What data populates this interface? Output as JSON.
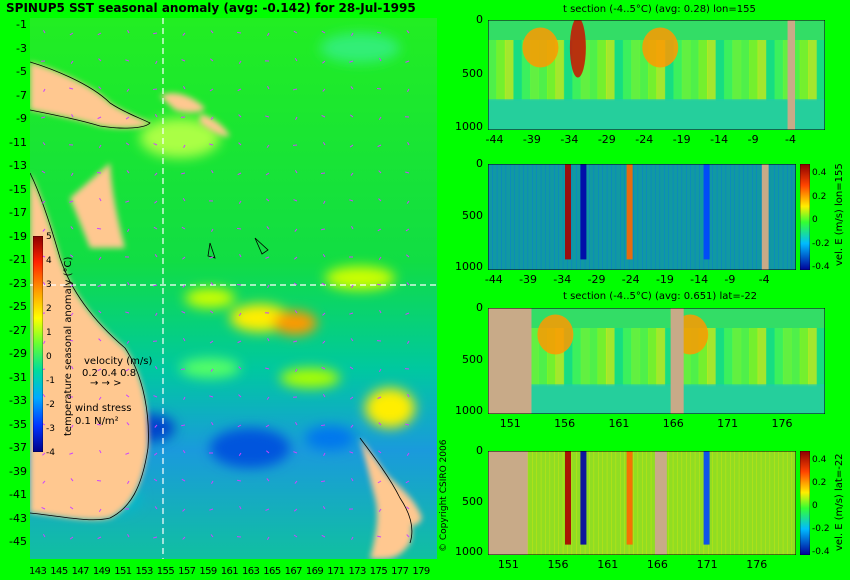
{
  "main_map": {
    "title": "SPINUP5 SST seasonal anomaly (avg: -0.142) for 28-Jul-1995",
    "y_ticks": [
      "-1",
      "-3",
      "-5",
      "-7",
      "-9",
      "-11",
      "-13",
      "-15",
      "-17",
      "-19",
      "-21",
      "-23",
      "-25",
      "-27",
      "-29",
      "-31",
      "-33",
      "-35",
      "-37",
      "-39",
      "-41",
      "-43",
      "-45"
    ],
    "x_ticks": [
      "143",
      "145",
      "147",
      "149",
      "151",
      "153",
      "155",
      "157",
      "159",
      "161",
      "163",
      "165",
      "167",
      "169",
      "171",
      "173",
      "175",
      "177",
      "179"
    ],
    "colorbar_ticks": [
      "5",
      "4",
      "3",
      "2",
      "1",
      "0",
      "-1",
      "-2",
      "-3",
      "-4"
    ],
    "colorbar_label": "temperature seasonal anomaly (°C)",
    "velocity_label": "velocity (m/s)",
    "velocity_scale": "0.2 0.4 0.8",
    "wind_label": "wind stress",
    "wind_scale": "0.1 N/m²",
    "copyright": "© Copyright CSIRO 2006"
  },
  "chart_data": [
    {
      "type": "heatmap",
      "title": "SPINUP5 SST seasonal anomaly (avg: -0.142) for 28-Jul-1995",
      "x_range": [
        143,
        180
      ],
      "y_range": [
        -45,
        0
      ],
      "colorbar_range": [
        -4,
        5
      ],
      "colorbar_label": "temperature seasonal anomaly (°C)",
      "crosshair": {
        "lon": 155,
        "lat": -22
      },
      "colors": {
        "land": "#ffc890",
        "ocean_base": "#00ff00",
        "crosshair": "#ffffff"
      }
    },
    {
      "type": "heatmap",
      "title": "t section (-4..5°C) (avg: 0.28) lon=155",
      "x_ticks": [
        "-44",
        "-39",
        "-34",
        "-29",
        "-24",
        "-19",
        "-14",
        "-9",
        "-4"
      ],
      "y_ticks": [
        "0",
        "500",
        "1000"
      ],
      "x_range": [
        -45,
        0
      ],
      "y_range": [
        0,
        1000
      ],
      "hotspots": [
        {
          "x": -33,
          "depth": 250,
          "level": "max"
        },
        {
          "x": -22,
          "depth": 250,
          "level": "high"
        },
        {
          "x": -38,
          "depth": 250,
          "level": "high"
        }
      ]
    },
    {
      "type": "heatmap",
      "title": "",
      "x_ticks": [
        "-44",
        "-39",
        "-34",
        "-29",
        "-24",
        "-19",
        "-14",
        "-9",
        "-4"
      ],
      "y_ticks": [
        "0",
        "500",
        "1000"
      ],
      "x_range": [
        -45,
        0
      ],
      "y_range": [
        0,
        1000
      ],
      "colorbar_ticks": [
        "0.4",
        "0.2",
        "0",
        "-0.2",
        "-0.4"
      ],
      "colorbar_label": "vel. E (m/s) lon=155"
    },
    {
      "type": "heatmap",
      "title": "t section (-4..5°C) (avg: 0.651) lat=-22",
      "x_ticks": [
        "151",
        "156",
        "161",
        "166",
        "171",
        "176"
      ],
      "y_ticks": [
        "0",
        "500",
        "1000"
      ],
      "x_range": [
        149,
        180
      ],
      "y_range": [
        0,
        1000
      ]
    },
    {
      "type": "heatmap",
      "title": "",
      "x_ticks": [
        "151",
        "156",
        "161",
        "166",
        "171",
        "176"
      ],
      "y_ticks": [
        "0",
        "500",
        "1000"
      ],
      "x_range": [
        149,
        180
      ],
      "y_range": [
        0,
        1000
      ],
      "colorbar_ticks": [
        "0.4",
        "0.2",
        "0",
        "-0.2",
        "-0.4"
      ],
      "colorbar_label": "vel. E (m/s) lat=-22"
    }
  ]
}
